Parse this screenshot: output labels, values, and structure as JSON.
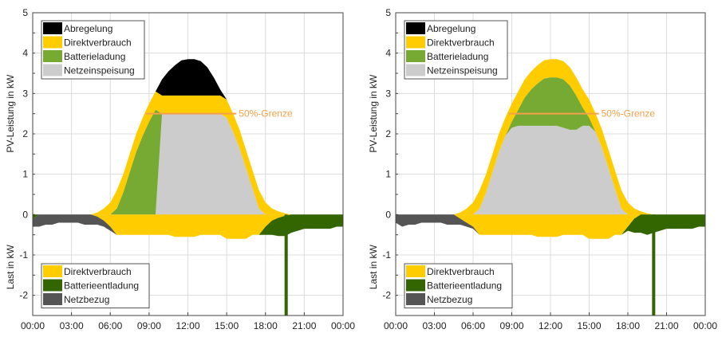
{
  "chart_data": [
    {
      "type": "area",
      "time_step_hours": 0.5,
      "x_ticks": [
        "00:00",
        "03:00",
        "06:00",
        "09:00",
        "12:00",
        "15:00",
        "18:00",
        "21:00",
        "00:00"
      ],
      "y_ticks": [
        "5",
        "4",
        "3",
        "2",
        "1",
        "0",
        "-1",
        "-2"
      ],
      "ylim": [
        -2.5,
        5
      ],
      "ylabel_top": "PV-Leistung in kW",
      "ylabel_bottom": "Last in kW",
      "grid": true,
      "limit_line": {
        "label": "50%-Grenze",
        "value": 2.5,
        "from": 8.75,
        "to": 15.75,
        "color": "#f5a04a"
      },
      "legend_top": [
        "Abregelung",
        "Direktverbrauch",
        "Batterieladung",
        "Netzeinspeisung"
      ],
      "legend_bottom": [
        "Direktverbrauch",
        "Batterieentladung",
        "Netzbezug"
      ],
      "pv_series": [
        {
          "name": "Netzeinspeisung",
          "color": "#cccccc",
          "values": [
            0,
            0,
            0,
            0,
            0,
            0,
            0,
            0,
            0,
            0,
            0,
            0,
            0,
            0,
            0,
            0,
            0,
            0,
            0,
            0,
            2.5,
            2.5,
            2.5,
            2.5,
            2.5,
            2.5,
            2.5,
            2.5,
            2.5,
            2.5,
            2.4,
            2.05,
            1.65,
            1.15,
            0.65,
            0.15,
            0,
            0,
            0,
            0,
            0,
            0,
            0,
            0,
            0,
            0,
            0,
            0,
            0
          ]
        },
        {
          "name": "Batterieladung",
          "color": "#77aa33",
          "values": [
            0,
            0,
            0,
            0,
            0,
            0,
            0,
            0,
            0,
            0,
            0,
            0,
            0,
            0.15,
            0.55,
            1.05,
            1.55,
            1.95,
            2.3,
            2.6,
            0,
            0,
            0,
            0,
            0,
            0,
            0,
            0,
            0,
            0,
            0,
            0,
            0,
            0,
            0,
            0,
            0,
            0,
            0,
            0,
            0,
            0,
            0,
            0,
            0,
            0,
            0,
            0,
            0
          ]
        },
        {
          "name": "Direktverbrauch",
          "color": "#ffcc00",
          "values": [
            0,
            0,
            0,
            0,
            0,
            0,
            0,
            0,
            0,
            0,
            0.05,
            0.15,
            0.3,
            0.45,
            0.45,
            0.45,
            0.45,
            0.45,
            0.45,
            0.45,
            0.45,
            0.45,
            0.45,
            0.45,
            0.45,
            0.45,
            0.45,
            0.45,
            0.45,
            0.45,
            0.45,
            0.45,
            0.45,
            0.45,
            0.45,
            0.45,
            0.3,
            0.15,
            0.08,
            0.03,
            0,
            0,
            0,
            0,
            0,
            0,
            0,
            0,
            0
          ]
        },
        {
          "name": "Abregelung",
          "color": "#000000",
          "values": [
            0,
            0,
            0,
            0,
            0,
            0,
            0,
            0,
            0,
            0,
            0,
            0,
            0,
            0,
            0,
            0,
            0,
            0,
            0,
            0,
            0.4,
            0.6,
            0.75,
            0.87,
            0.9,
            0.9,
            0.85,
            0.7,
            0.45,
            0.15,
            0,
            0,
            0,
            0,
            0,
            0,
            0,
            0,
            0,
            0,
            0,
            0,
            0,
            0,
            0,
            0,
            0,
            0,
            0
          ]
        }
      ],
      "load_series": [
        {
          "name": "Direktverbrauch",
          "color": "#ffcc00",
          "values": [
            0,
            0,
            0,
            0,
            0,
            0,
            0,
            0,
            0,
            0,
            -0.05,
            -0.15,
            -0.3,
            -0.5,
            -0.5,
            -0.5,
            -0.5,
            -0.5,
            -0.5,
            -0.5,
            -0.5,
            -0.5,
            -0.55,
            -0.55,
            -0.55,
            -0.55,
            -0.5,
            -0.5,
            -0.5,
            -0.5,
            -0.6,
            -0.6,
            -0.6,
            -0.6,
            -0.5,
            -0.5,
            -0.3,
            -0.15,
            -0.08,
            -0.03,
            0,
            0,
            0,
            0,
            0,
            0,
            0,
            0,
            0
          ]
        },
        {
          "name": "Batterieentladung",
          "color": "#336600",
          "values": [
            -0.1,
            0,
            0,
            0,
            0,
            0,
            0,
            0,
            0,
            0,
            0,
            0,
            0,
            0,
            0,
            0,
            0,
            0,
            0,
            0,
            0,
            0,
            0,
            0,
            0,
            0,
            0,
            0,
            0,
            0,
            0,
            0,
            0,
            0,
            0,
            0,
            -0.2,
            -0.35,
            -0.45,
            -0.5,
            -0.45,
            -0.4,
            -0.35,
            -0.35,
            -0.35,
            -0.35,
            -0.35,
            -0.3,
            -0.3
          ]
        },
        {
          "name": "Netzbezug",
          "color": "#555555",
          "values": [
            -0.2,
            -0.3,
            -0.25,
            -0.25,
            -0.2,
            -0.2,
            -0.2,
            -0.2,
            -0.25,
            -0.25,
            -0.2,
            -0.15,
            -0.1,
            0,
            0,
            0,
            0,
            0,
            0,
            0,
            0,
            0,
            0,
            0,
            0,
            0,
            0,
            0,
            0,
            0,
            0,
            0,
            0,
            0,
            0,
            0,
            0,
            0,
            0,
            0,
            0,
            0,
            0,
            0,
            0,
            0,
            0,
            0,
            0
          ]
        }
      ],
      "load_peak": {
        "series": "Batterieentladung",
        "time": 19.6,
        "value": -2.5
      }
    },
    {
      "type": "area",
      "time_step_hours": 0.5,
      "x_ticks": [
        "00:00",
        "03:00",
        "06:00",
        "09:00",
        "12:00",
        "15:00",
        "18:00",
        "21:00",
        "00:00"
      ],
      "y_ticks": [
        "5",
        "4",
        "3",
        "2",
        "1",
        "0",
        "-1",
        "-2"
      ],
      "ylim": [
        -2.5,
        5
      ],
      "ylabel_top": "PV-Leistung in kW",
      "ylabel_bottom": "Last in kW",
      "grid": true,
      "limit_line": {
        "label": "50%-Grenze",
        "value": 2.5,
        "from": 8.75,
        "to": 15.75,
        "color": "#f5a04a"
      },
      "legend_top": [
        "Abregelung",
        "Direktverbrauch",
        "Batterieladung",
        "Netzeinspeisung"
      ],
      "legend_bottom": [
        "Direktverbrauch",
        "Batterieentladung",
        "Netzbezug"
      ],
      "pv_series": [
        {
          "name": "Netzeinspeisung",
          "color": "#cccccc",
          "values": [
            0,
            0,
            0,
            0,
            0,
            0,
            0,
            0,
            0,
            0,
            0,
            0,
            0,
            0.15,
            0.55,
            1.05,
            1.55,
            1.95,
            2.15,
            2.2,
            2.2,
            2.2,
            2.2,
            2.2,
            2.2,
            2.2,
            2.15,
            2.1,
            2.1,
            2.2,
            2.2,
            2.05,
            1.65,
            1.15,
            0.65,
            0.15,
            0,
            0,
            0,
            0,
            0,
            0,
            0,
            0,
            0,
            0,
            0,
            0,
            0
          ]
        },
        {
          "name": "Batterieladung",
          "color": "#77aa33",
          "values": [
            0,
            0,
            0,
            0,
            0,
            0,
            0,
            0,
            0,
            0,
            0,
            0,
            0,
            0,
            0,
            0,
            0,
            0,
            0.15,
            0.4,
            0.7,
            0.9,
            1.05,
            1.17,
            1.2,
            1.2,
            1.2,
            1.1,
            0.85,
            0.45,
            0.2,
            0,
            0,
            0,
            0,
            0,
            0,
            0,
            0,
            0,
            0,
            0,
            0,
            0,
            0,
            0,
            0,
            0,
            0
          ]
        },
        {
          "name": "Direktverbrauch",
          "color": "#ffcc00",
          "values": [
            0,
            0,
            0,
            0,
            0,
            0,
            0,
            0,
            0,
            0,
            0.05,
            0.15,
            0.3,
            0.45,
            0.45,
            0.45,
            0.45,
            0.45,
            0.45,
            0.45,
            0.45,
            0.45,
            0.45,
            0.45,
            0.45,
            0.45,
            0.45,
            0.45,
            0.45,
            0.45,
            0.45,
            0.45,
            0.45,
            0.45,
            0.45,
            0.45,
            0.3,
            0.15,
            0.08,
            0.03,
            0,
            0,
            0,
            0,
            0,
            0,
            0,
            0,
            0
          ]
        },
        {
          "name": "Abregelung",
          "color": "#000000",
          "values": [
            0,
            0,
            0,
            0,
            0,
            0,
            0,
            0,
            0,
            0,
            0,
            0,
            0,
            0,
            0,
            0,
            0,
            0,
            0,
            0,
            0,
            0,
            0,
            0,
            0,
            0,
            0,
            0,
            0,
            0,
            0,
            0,
            0,
            0,
            0,
            0,
            0,
            0,
            0,
            0,
            0,
            0,
            0,
            0,
            0,
            0,
            0,
            0,
            0
          ]
        }
      ],
      "load_series": [
        {
          "name": "Direktverbrauch",
          "color": "#ffcc00",
          "values": [
            0,
            0,
            0,
            0,
            0,
            0,
            0,
            0,
            0,
            0,
            -0.1,
            -0.2,
            -0.3,
            -0.5,
            -0.5,
            -0.5,
            -0.5,
            -0.5,
            -0.5,
            -0.5,
            -0.5,
            -0.5,
            -0.55,
            -0.55,
            -0.55,
            -0.55,
            -0.5,
            -0.5,
            -0.5,
            -0.5,
            -0.6,
            -0.6,
            -0.6,
            -0.6,
            -0.5,
            -0.5,
            -0.3,
            -0.1,
            0,
            0,
            0,
            0,
            0,
            0,
            0,
            0,
            0,
            0,
            0
          ]
        },
        {
          "name": "Batterieentladung",
          "color": "#336600",
          "values": [
            0,
            0,
            0,
            0,
            0,
            0,
            0,
            0,
            0,
            0,
            0,
            0,
            0,
            0,
            0,
            0,
            0,
            0,
            0,
            0,
            0,
            0,
            0,
            0,
            0,
            0,
            0,
            0,
            0,
            0,
            0,
            0,
            0,
            0,
            0,
            0,
            -0.1,
            -0.35,
            -0.45,
            -0.5,
            -0.45,
            -0.4,
            -0.35,
            -0.35,
            -0.35,
            -0.35,
            -0.35,
            -0.3,
            -0.3
          ]
        },
        {
          "name": "Netzbezug",
          "color": "#555555",
          "values": [
            -0.2,
            -0.3,
            -0.25,
            -0.25,
            -0.2,
            -0.2,
            -0.2,
            -0.2,
            -0.25,
            -0.25,
            -0.15,
            -0.1,
            -0.05,
            0,
            0,
            0,
            0,
            0,
            0,
            0,
            0,
            0,
            0,
            0,
            0,
            0,
            0,
            0,
            0,
            0,
            0,
            0,
            0,
            0,
            0,
            0,
            0,
            0,
            0,
            0,
            0,
            0,
            0,
            0,
            0,
            0,
            0,
            0,
            0
          ]
        }
      ],
      "load_peak": {
        "series": "Batterieentladung",
        "time": 20.0,
        "value": -2.5
      }
    }
  ]
}
